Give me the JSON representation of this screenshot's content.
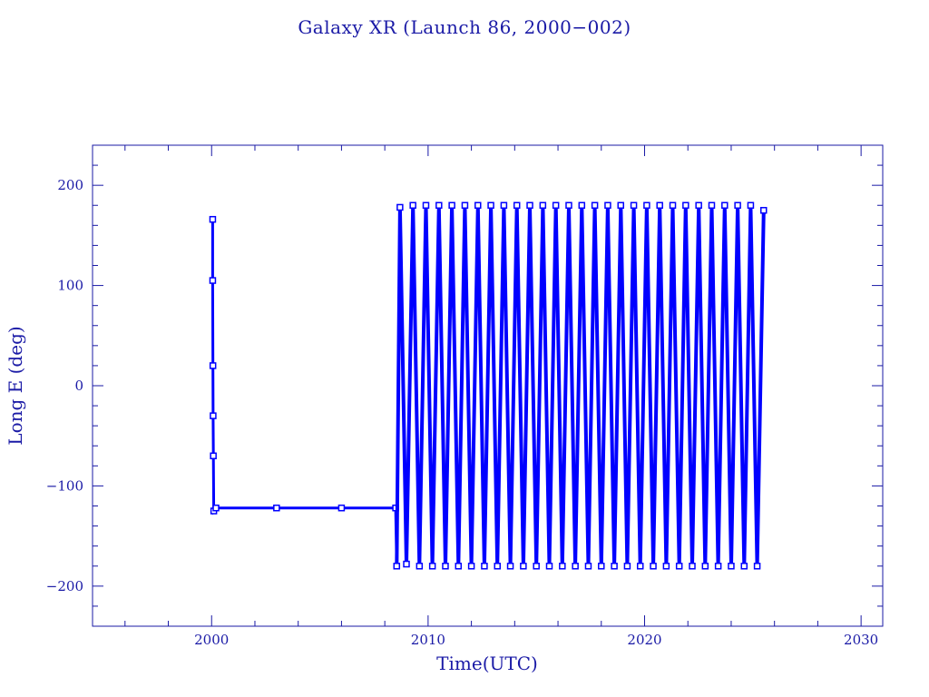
{
  "colors": {
    "text": "#1a1aa6",
    "frame": "#1a1aa6",
    "series": "#0000ff"
  },
  "chart_data": {
    "type": "line",
    "title": "Galaxy XR (Launch 86, 2000−002)",
    "xlabel": "Time(UTC)",
    "ylabel": "Long E (deg)",
    "xlim": [
      1994.5,
      2031
    ],
    "ylim": [
      -240,
      240
    ],
    "xticks": [
      2000,
      2010,
      2020,
      2030
    ],
    "xtick_labels": [
      "2000",
      "2010",
      "2020",
      "2030"
    ],
    "yticks": [
      -200,
      -100,
      0,
      100,
      200
    ],
    "ytick_labels": [
      "−200",
      "−100",
      "0",
      "100",
      "200"
    ],
    "grid": false,
    "legend": "none",
    "marker": "square",
    "series": [
      {
        "x": [
          2000.05,
          2000.05,
          2000.06,
          2000.07,
          2000.08,
          2000.1,
          2000.2,
          2003,
          2006,
          2008.5,
          2008.55
        ],
        "values": [
          166,
          105,
          20,
          -30,
          -70,
          -125,
          -122,
          -122,
          -122,
          -122,
          -180
        ]
      },
      {
        "x": [
          2008.55,
          2008.7,
          2009.0,
          2009.3,
          2009.6,
          2009.9,
          2010.2,
          2010.5,
          2010.8,
          2011.1,
          2011.4,
          2011.7,
          2012.0,
          2012.3,
          2012.6,
          2012.9,
          2013.2,
          2013.5,
          2013.8,
          2014.1,
          2014.4,
          2014.7,
          2015.0,
          2015.3,
          2015.6,
          2015.9,
          2016.2,
          2016.5,
          2016.8,
          2017.1,
          2017.4,
          2017.7,
          2018.0,
          2018.3,
          2018.6,
          2018.9,
          2019.2,
          2019.5,
          2019.8,
          2020.1,
          2020.4,
          2020.7,
          2021.0,
          2021.3,
          2021.6,
          2021.9,
          2022.2,
          2022.5,
          2022.8,
          2023.1,
          2023.4,
          2023.7,
          2024.0,
          2024.3,
          2024.6,
          2024.9,
          2025.2,
          2025.5
        ],
        "values": [
          -180,
          178,
          -178,
          180,
          -180,
          180,
          -180,
          180,
          -180,
          180,
          -180,
          180,
          -180,
          180,
          -180,
          180,
          -180,
          180,
          -180,
          180,
          -180,
          180,
          -180,
          180,
          -180,
          180,
          -180,
          180,
          -180,
          180,
          -180,
          180,
          -180,
          180,
          -180,
          180,
          -180,
          180,
          -180,
          180,
          -180,
          180,
          -180,
          180,
          -180,
          180,
          -180,
          180,
          -180,
          180,
          -180,
          180,
          -180,
          180,
          -180,
          180,
          -180,
          175
        ]
      }
    ]
  }
}
